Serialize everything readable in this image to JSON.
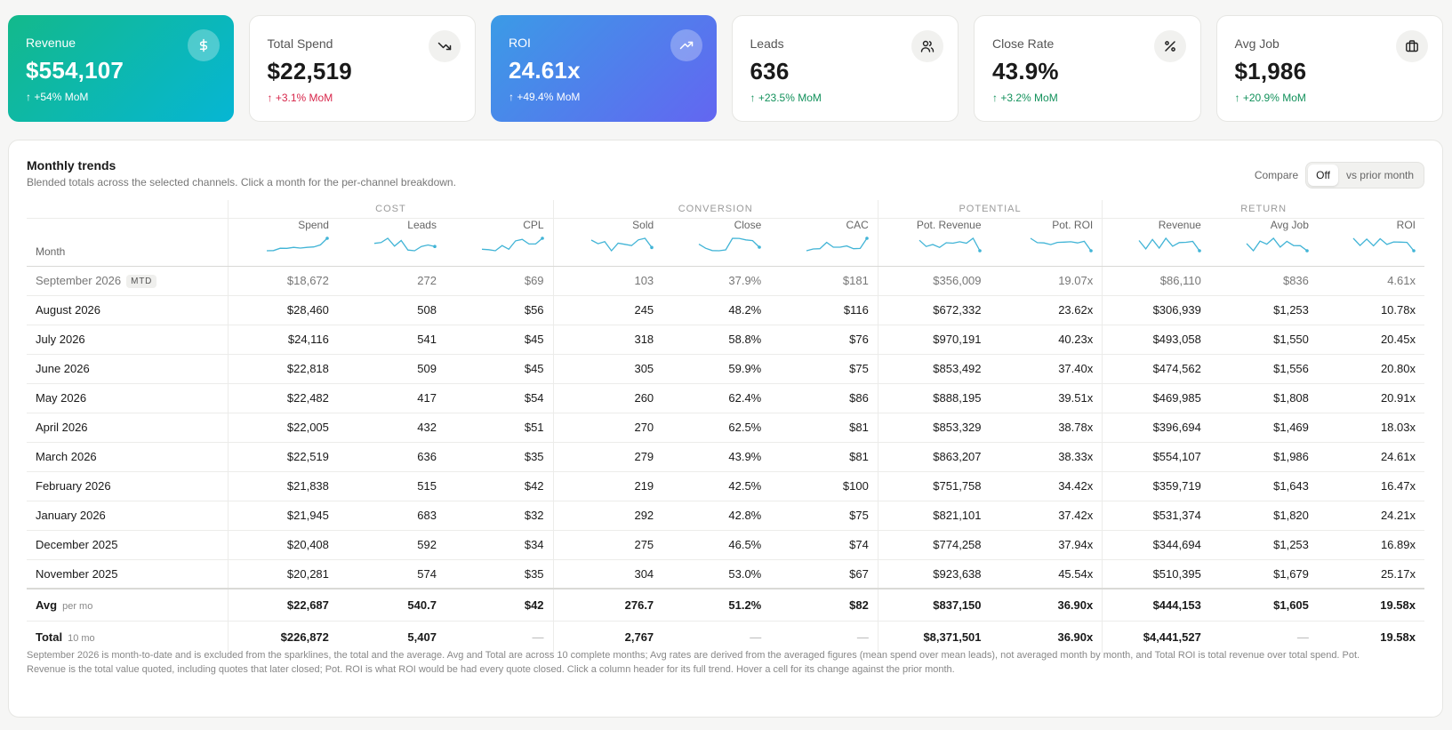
{
  "kpis": [
    {
      "label": "Revenue",
      "value": "$554,107",
      "delta": "↑ +54% MoM",
      "icon": "dollar-icon"
    },
    {
      "label": "Total Spend",
      "value": "$22,519",
      "delta": "↑ +3.1% MoM",
      "icon": "trending-down-icon"
    },
    {
      "label": "ROI",
      "value": "24.61x",
      "delta": "↑ +49.4% MoM",
      "icon": "trending-up-icon"
    },
    {
      "label": "Leads",
      "value": "636",
      "delta": "↑ +23.5% MoM",
      "icon": "users-icon"
    },
    {
      "label": "Close Rate",
      "value": "43.9%",
      "delta": "↑ +3.2% MoM",
      "icon": "percent-icon"
    },
    {
      "label": "Avg Job",
      "value": "$1,986",
      "delta": "↑ +20.9% MoM",
      "icon": "briefcase-icon"
    }
  ],
  "colors": {
    "revenue_gradient": [
      "#13b98b",
      "#06b6d4"
    ],
    "roi_gradient": [
      "#3b9be6",
      "#6366f1"
    ],
    "positive": "#12915b",
    "negative": "#d7264a",
    "sparkline": "#41b4d6"
  },
  "trends": {
    "title": "Monthly trends",
    "subtitle": "Blended totals across the selected channels. Click a month for the per-channel breakdown.",
    "compare_label": "Compare",
    "compare_options": [
      "Off",
      "vs prior month"
    ],
    "compare_selected": "Off",
    "groups": [
      "COST",
      "CONVERSION",
      "POTENTIAL",
      "RETURN"
    ],
    "month_header": "Month",
    "columns": [
      "Spend",
      "Leads",
      "CPL",
      "Sold",
      "Close",
      "CAC",
      "Pot. Revenue",
      "Pot. ROI",
      "Revenue",
      "Avg Job",
      "ROI"
    ],
    "mtd_badge": "MTD",
    "rows": [
      {
        "month": "September 2026",
        "mtd": true,
        "cells": [
          "$18,672",
          "272",
          "$69",
          "103",
          "37.9%",
          "$181",
          "$356,009",
          "19.07x",
          "$86,110",
          "$836",
          "4.61x"
        ]
      },
      {
        "month": "August 2026",
        "cells": [
          "$28,460",
          "508",
          "$56",
          "245",
          "48.2%",
          "$116",
          "$672,332",
          "23.62x",
          "$306,939",
          "$1,253",
          "10.78x"
        ]
      },
      {
        "month": "July 2026",
        "cells": [
          "$24,116",
          "541",
          "$45",
          "318",
          "58.8%",
          "$76",
          "$970,191",
          "40.23x",
          "$493,058",
          "$1,550",
          "20.45x"
        ]
      },
      {
        "month": "June 2026",
        "cells": [
          "$22,818",
          "509",
          "$45",
          "305",
          "59.9%",
          "$75",
          "$853,492",
          "37.40x",
          "$474,562",
          "$1,556",
          "20.80x"
        ]
      },
      {
        "month": "May 2026",
        "cells": [
          "$22,482",
          "417",
          "$54",
          "260",
          "62.4%",
          "$86",
          "$888,195",
          "39.51x",
          "$469,985",
          "$1,808",
          "20.91x"
        ]
      },
      {
        "month": "April 2026",
        "cells": [
          "$22,005",
          "432",
          "$51",
          "270",
          "62.5%",
          "$81",
          "$853,329",
          "38.78x",
          "$396,694",
          "$1,469",
          "18.03x"
        ]
      },
      {
        "month": "March 2026",
        "cells": [
          "$22,519",
          "636",
          "$35",
          "279",
          "43.9%",
          "$81",
          "$863,207",
          "38.33x",
          "$554,107",
          "$1,986",
          "24.61x"
        ]
      },
      {
        "month": "February 2026",
        "cells": [
          "$21,838",
          "515",
          "$42",
          "219",
          "42.5%",
          "$100",
          "$751,758",
          "34.42x",
          "$359,719",
          "$1,643",
          "16.47x"
        ]
      },
      {
        "month": "January 2026",
        "cells": [
          "$21,945",
          "683",
          "$32",
          "292",
          "42.8%",
          "$75",
          "$821,101",
          "37.42x",
          "$531,374",
          "$1,820",
          "24.21x"
        ]
      },
      {
        "month": "December 2025",
        "cells": [
          "$20,408",
          "592",
          "$34",
          "275",
          "46.5%",
          "$74",
          "$774,258",
          "37.94x",
          "$344,694",
          "$1,253",
          "16.89x"
        ]
      },
      {
        "month": "November 2025",
        "cells": [
          "$20,281",
          "574",
          "$35",
          "304",
          "53.0%",
          "$67",
          "$923,638",
          "45.54x",
          "$510,395",
          "$1,679",
          "25.17x"
        ]
      }
    ],
    "avg": {
      "label": "Avg",
      "sub": "per mo",
      "cells": [
        "$22,687",
        "540.7",
        "$42",
        "276.7",
        "51.2%",
        "$82",
        "$837,150",
        "36.90x",
        "$444,153",
        "$1,605",
        "19.58x"
      ]
    },
    "total": {
      "label": "Total",
      "sub": "10 mo",
      "cells": [
        "$226,872",
        "5,407",
        "—",
        "2,767",
        "—",
        "—",
        "$8,371,501",
        "36.90x",
        "$4,441,527",
        "—",
        "19.58x"
      ]
    },
    "footnote": "September 2026 is month-to-date and is excluded from the sparklines, the total and the average. Avg and Total are across 10 complete months; Avg rates are derived from the averaged figures (mean spend over mean leads), not averaged month by month, and Total ROI is total revenue over total spend. Pot. Revenue is the total value quoted, including quotes that later closed; Pot. ROI is what ROI would be had every quote closed. Click a column header for its full trend. Hover a cell for its change against the prior month."
  }
}
